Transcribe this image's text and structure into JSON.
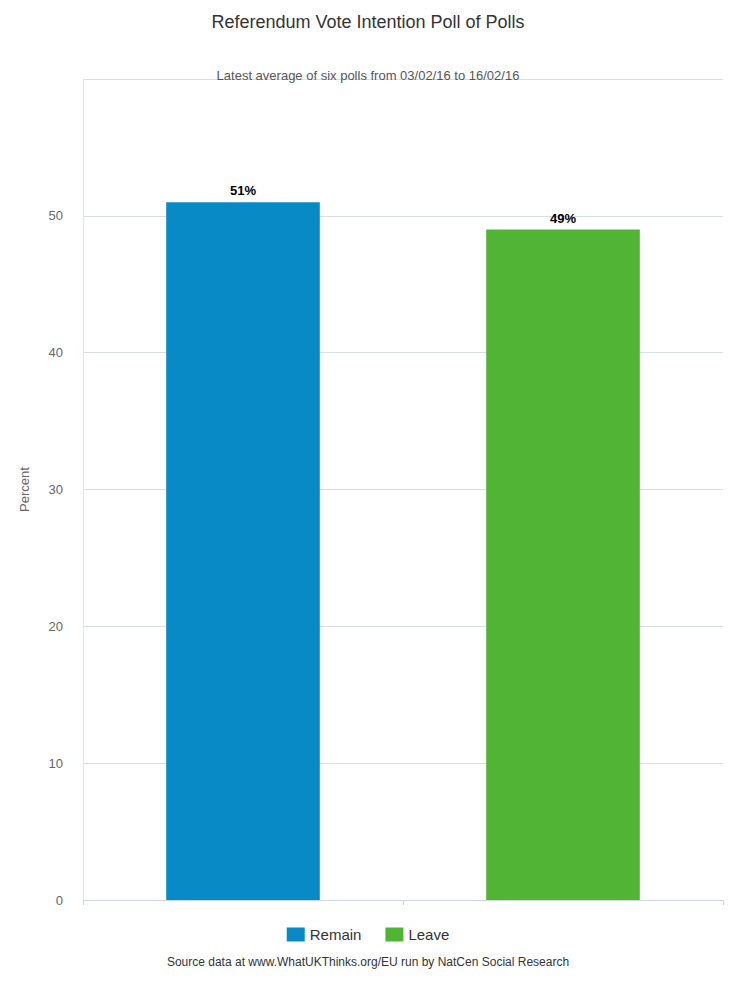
{
  "chart_data": {
    "type": "bar",
    "title": "Referendum Vote Intention Poll of Polls",
    "subtitle": "Latest average of six polls from 03/02/16 to 16/02/16",
    "source": "Source data at www.WhatUKThinks.org/EU run by NatCen Social Research",
    "y_label": "Percent",
    "categories": [
      "Remain",
      "Leave"
    ],
    "values": [
      51,
      49
    ],
    "value_labels": [
      "51%",
      "49%"
    ],
    "colors": [
      "#078ac6",
      "#52b434"
    ],
    "ylim": [
      0,
      60
    ],
    "yticks": [
      0,
      10,
      20,
      30,
      40,
      50
    ],
    "grid": true,
    "legend": "bottom",
    "data_labels": true,
    "tick_labels": "y"
  }
}
